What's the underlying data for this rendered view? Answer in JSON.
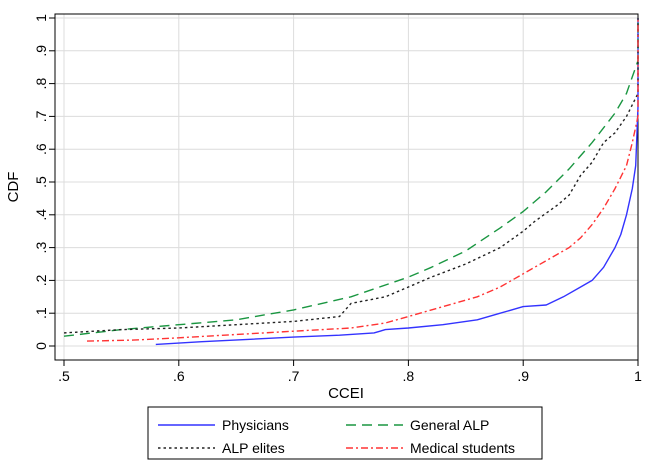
{
  "chart_data": {
    "type": "line",
    "title": "",
    "xlabel": "CCEI",
    "ylabel": "CDF",
    "xlim": [
      0.5,
      1.0
    ],
    "ylim": [
      0,
      1.0
    ],
    "x_ticks": [
      {
        "value": 0.5,
        "label": ".5"
      },
      {
        "value": 0.6,
        "label": ".6"
      },
      {
        "value": 0.7,
        "label": ".7"
      },
      {
        "value": 0.8,
        "label": ".8"
      },
      {
        "value": 0.9,
        "label": ".9"
      },
      {
        "value": 1.0,
        "label": "1"
      }
    ],
    "y_ticks": [
      {
        "value": 0,
        "label": "0"
      },
      {
        "value": 0.1,
        "label": ".1"
      },
      {
        "value": 0.2,
        "label": ".2"
      },
      {
        "value": 0.3,
        "label": ".3"
      },
      {
        "value": 0.4,
        "label": ".4"
      },
      {
        "value": 0.5,
        "label": ".5"
      },
      {
        "value": 0.6,
        "label": ".6"
      },
      {
        "value": 0.7,
        "label": ".7"
      },
      {
        "value": 0.8,
        "label": ".8"
      },
      {
        "value": 0.9,
        "label": ".9"
      },
      {
        "value": 1.0,
        "label": "1"
      }
    ],
    "grid": true,
    "legend_position": "bottom",
    "series": [
      {
        "name": "Physicians",
        "color": "#3333ff",
        "dash": "solid",
        "points": [
          [
            0.58,
            0.005
          ],
          [
            0.62,
            0.013
          ],
          [
            0.66,
            0.02
          ],
          [
            0.7,
            0.027
          ],
          [
            0.74,
            0.033
          ],
          [
            0.77,
            0.04
          ],
          [
            0.78,
            0.05
          ],
          [
            0.8,
            0.055
          ],
          [
            0.83,
            0.065
          ],
          [
            0.86,
            0.08
          ],
          [
            0.88,
            0.1
          ],
          [
            0.9,
            0.12
          ],
          [
            0.92,
            0.125
          ],
          [
            0.935,
            0.15
          ],
          [
            0.95,
            0.18
          ],
          [
            0.96,
            0.2
          ],
          [
            0.97,
            0.24
          ],
          [
            0.98,
            0.3
          ],
          [
            0.985,
            0.34
          ],
          [
            0.99,
            0.4
          ],
          [
            0.995,
            0.48
          ],
          [
            0.998,
            0.55
          ],
          [
            1.0,
            0.73
          ],
          [
            1.0,
            1.0
          ]
        ]
      },
      {
        "name": "General ALP",
        "color": "#1a9641",
        "dash": "long-dash",
        "points": [
          [
            0.5,
            0.03
          ],
          [
            0.55,
            0.05
          ],
          [
            0.6,
            0.065
          ],
          [
            0.65,
            0.08
          ],
          [
            0.7,
            0.11
          ],
          [
            0.75,
            0.15
          ],
          [
            0.8,
            0.21
          ],
          [
            0.82,
            0.24
          ],
          [
            0.85,
            0.29
          ],
          [
            0.88,
            0.36
          ],
          [
            0.9,
            0.41
          ],
          [
            0.92,
            0.47
          ],
          [
            0.94,
            0.54
          ],
          [
            0.96,
            0.62
          ],
          [
            0.98,
            0.71
          ],
          [
            0.99,
            0.77
          ],
          [
            1.0,
            0.87
          ],
          [
            1.0,
            1.0
          ]
        ]
      },
      {
        "name": "ALP elites",
        "color": "#222222",
        "dash": "dot",
        "points": [
          [
            0.5,
            0.04
          ],
          [
            0.55,
            0.05
          ],
          [
            0.6,
            0.055
          ],
          [
            0.65,
            0.065
          ],
          [
            0.7,
            0.075
          ],
          [
            0.74,
            0.09
          ],
          [
            0.75,
            0.13
          ],
          [
            0.78,
            0.15
          ],
          [
            0.8,
            0.18
          ],
          [
            0.82,
            0.21
          ],
          [
            0.85,
            0.25
          ],
          [
            0.88,
            0.3
          ],
          [
            0.9,
            0.35
          ],
          [
            0.91,
            0.38
          ],
          [
            0.93,
            0.43
          ],
          [
            0.94,
            0.46
          ],
          [
            0.95,
            0.52
          ],
          [
            0.96,
            0.56
          ],
          [
            0.97,
            0.62
          ],
          [
            0.98,
            0.65
          ],
          [
            0.99,
            0.7
          ],
          [
            1.0,
            0.77
          ],
          [
            1.0,
            1.0
          ]
        ]
      },
      {
        "name": "Medical students",
        "color": "#ff3333",
        "dash": "dash-dot",
        "points": [
          [
            0.52,
            0.015
          ],
          [
            0.56,
            0.018
          ],
          [
            0.6,
            0.025
          ],
          [
            0.65,
            0.035
          ],
          [
            0.7,
            0.045
          ],
          [
            0.75,
            0.055
          ],
          [
            0.78,
            0.07
          ],
          [
            0.8,
            0.09
          ],
          [
            0.82,
            0.11
          ],
          [
            0.84,
            0.13
          ],
          [
            0.86,
            0.15
          ],
          [
            0.88,
            0.18
          ],
          [
            0.9,
            0.22
          ],
          [
            0.92,
            0.26
          ],
          [
            0.94,
            0.3
          ],
          [
            0.95,
            0.33
          ],
          [
            0.96,
            0.37
          ],
          [
            0.97,
            0.42
          ],
          [
            0.98,
            0.48
          ],
          [
            0.99,
            0.55
          ],
          [
            0.995,
            0.62
          ],
          [
            1.0,
            0.7
          ],
          [
            1.0,
            1.0
          ]
        ]
      }
    ]
  }
}
